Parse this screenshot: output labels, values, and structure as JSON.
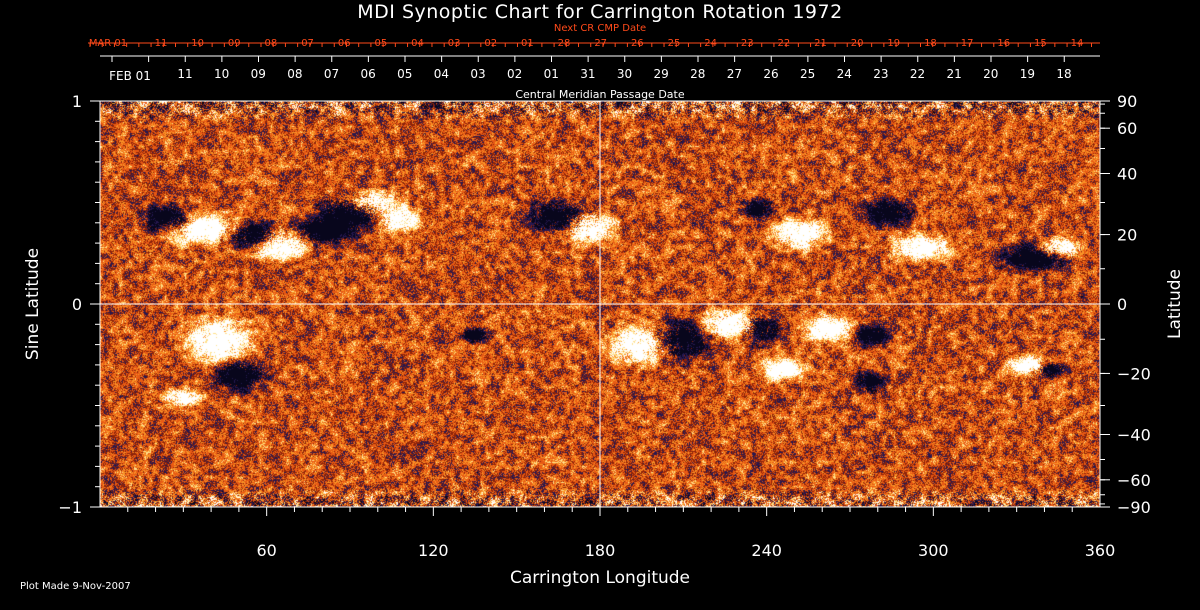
{
  "chart_data": {
    "type": "heatmap",
    "title": "MDI Synoptic Chart for Carrington Rotation 1972",
    "xlabel": "Carrington Longitude",
    "ylabel_left": "Sine Latitude",
    "ylabel_right": "Latitude",
    "xlim": [
      0,
      360
    ],
    "ylim": [
      -1,
      1
    ],
    "x_ticks": [
      60,
      120,
      180,
      240,
      300,
      360
    ],
    "y_ticks_left": [
      {
        "value": 1,
        "label": "1"
      },
      {
        "value": 0,
        "label": "0"
      },
      {
        "value": -1,
        "label": "−1"
      }
    ],
    "y_ticks_right": [
      90,
      60,
      40,
      20,
      0,
      -20,
      -40,
      -60,
      -90
    ],
    "grid": true,
    "colors": {
      "background": "#000000",
      "accent": "#ff4a1a",
      "field_low": "#14102f",
      "field_mid": "#e85a10",
      "field_high": "#ffffff"
    },
    "top_axis_red": {
      "label": "Next CR CMP Date",
      "labels": [
        "MAR 01",
        "11",
        "10",
        "09",
        "08",
        "07",
        "06",
        "05",
        "04",
        "03",
        "02",
        "01",
        "28",
        "27",
        "26",
        "25",
        "24",
        "23",
        "22",
        "21",
        "20",
        "19",
        "18",
        "17",
        "16",
        "15",
        "14"
      ]
    },
    "top_axis_white": {
      "label": "Central Meridian Passage Date",
      "labels": [
        "FEB 01",
        "11",
        "10",
        "09",
        "08",
        "07",
        "06",
        "05",
        "04",
        "03",
        "02",
        "01",
        "31",
        "30",
        "29",
        "28",
        "27",
        "26",
        "25",
        "24",
        "23",
        "22",
        "21",
        "20",
        "19",
        "18"
      ]
    }
  },
  "footer": {
    "plot_made": "Plot Made  9-Nov-2007"
  }
}
